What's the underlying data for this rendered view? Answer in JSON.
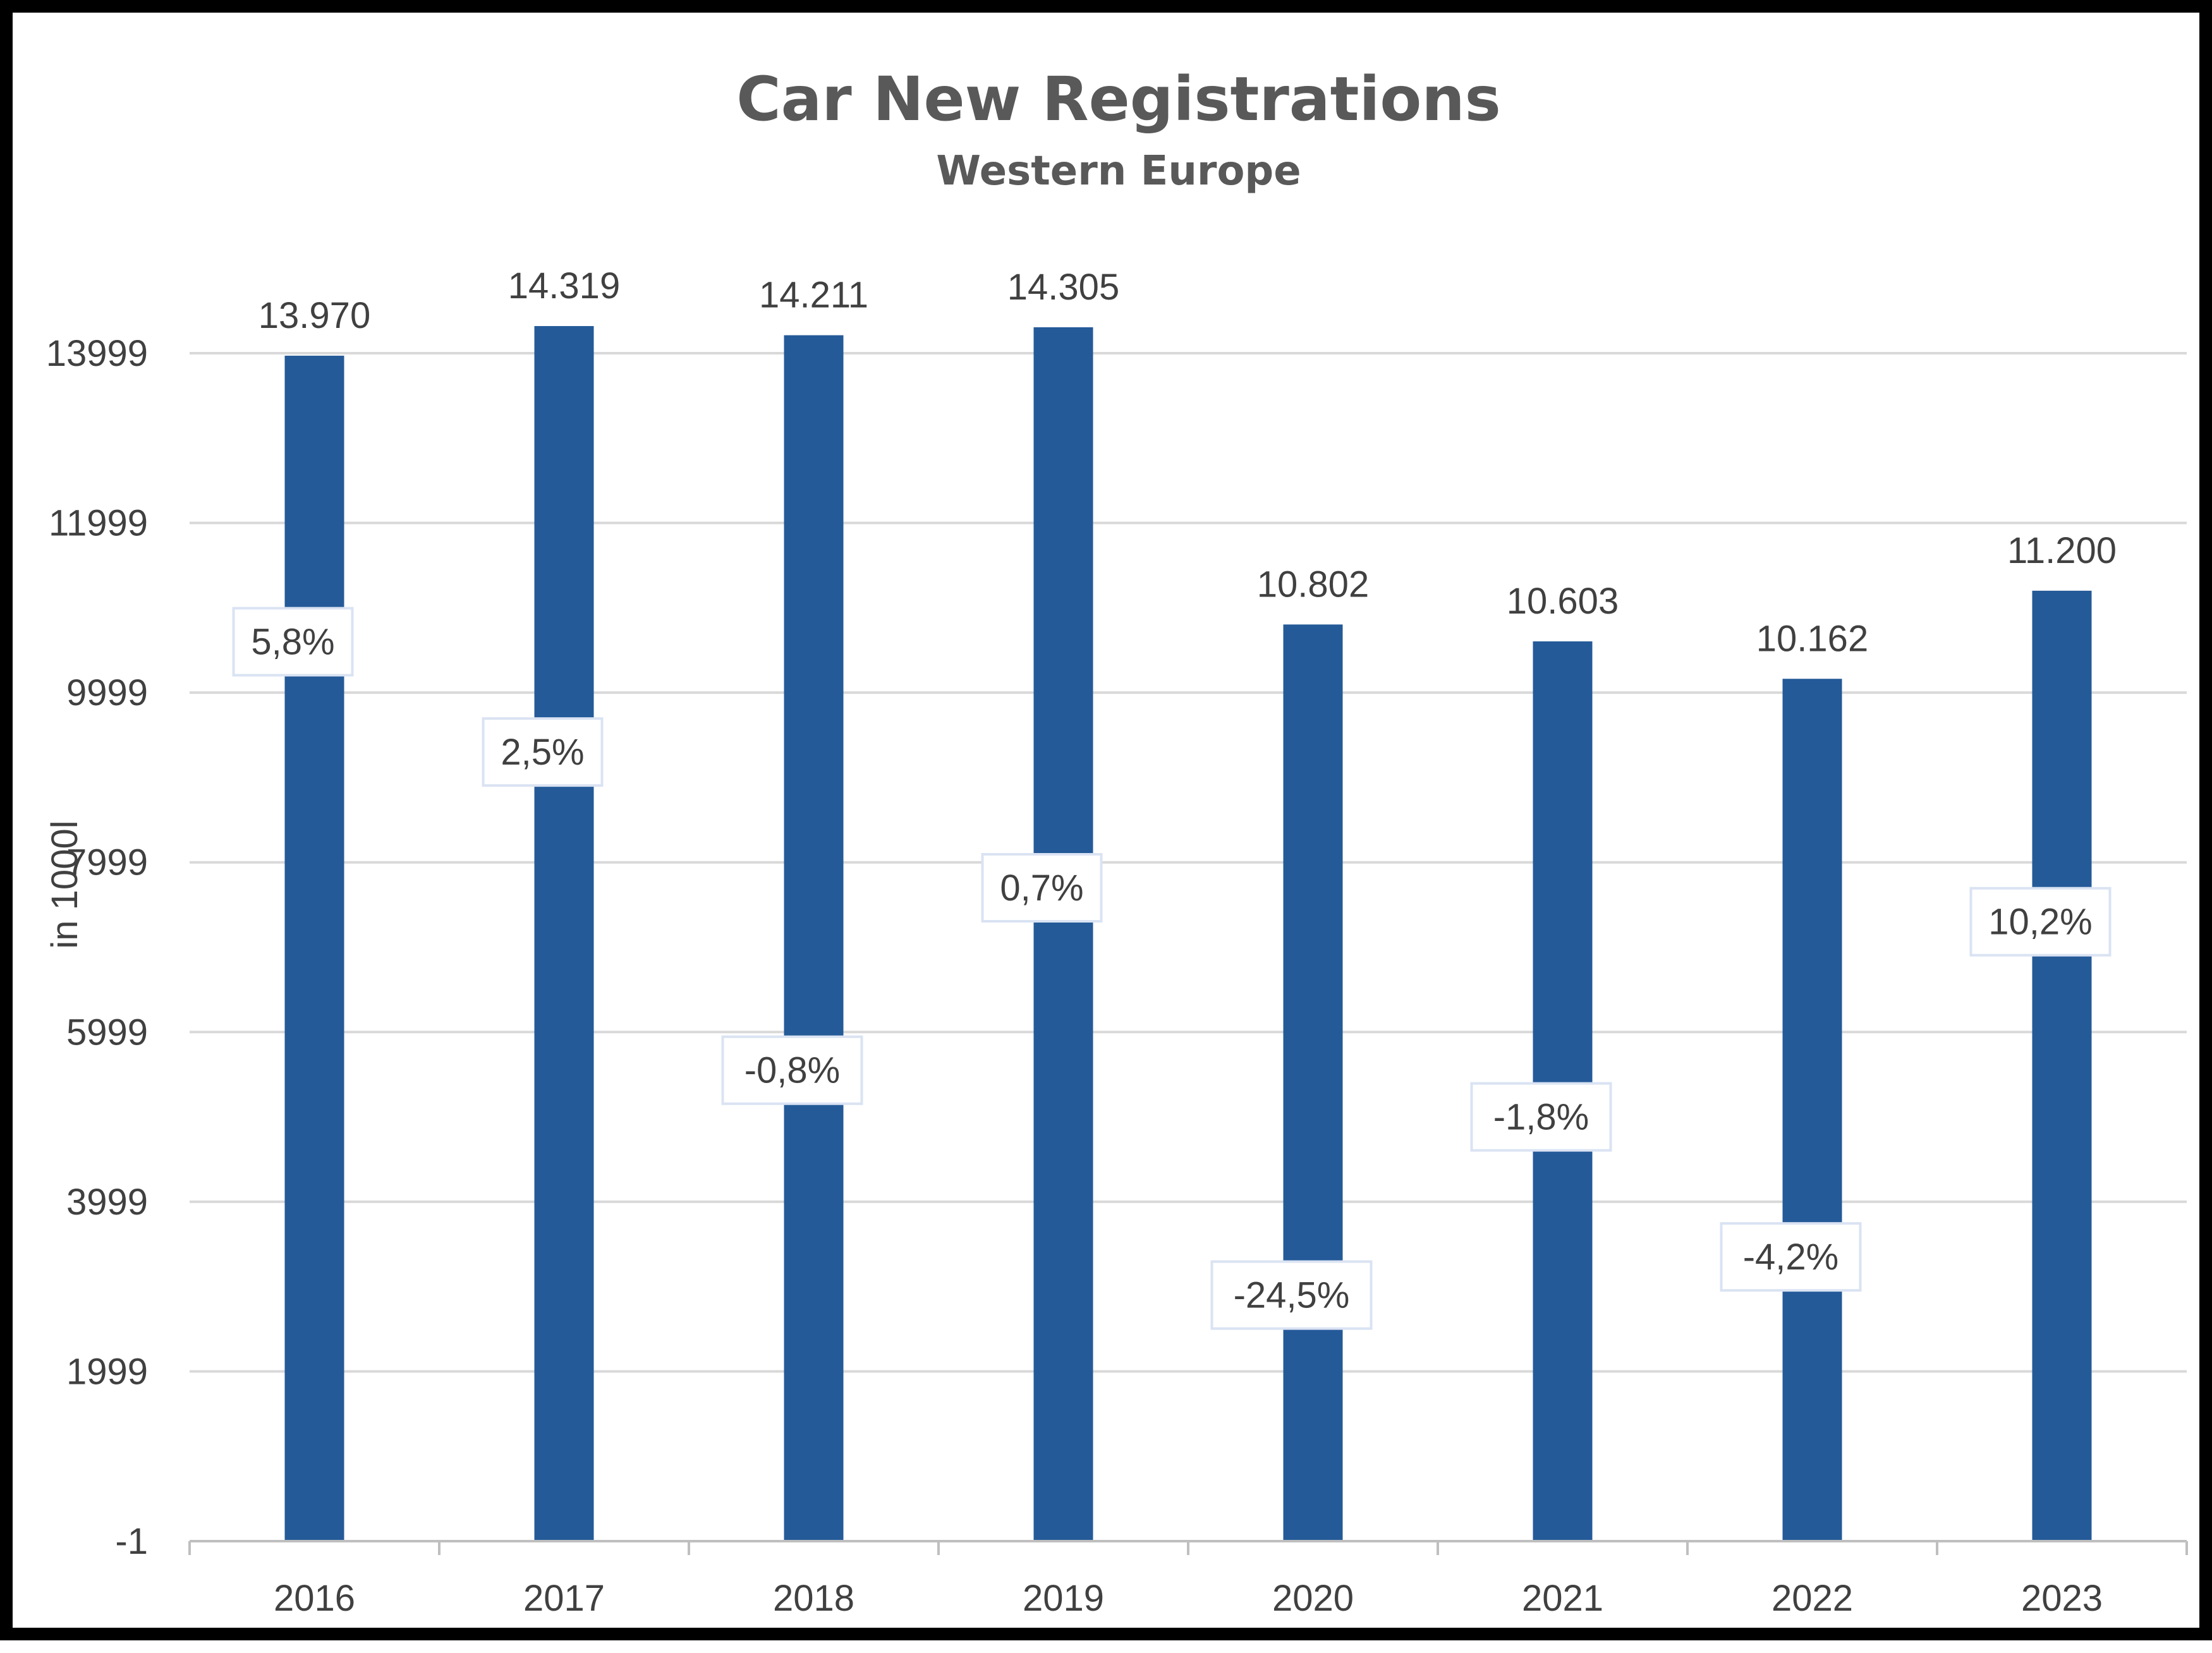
{
  "chart_data": {
    "type": "bar",
    "title": "Car New Registrations",
    "subtitle": "Western Europe",
    "ylabel": "in 1000l",
    "xlabel": "",
    "categories": [
      "2016",
      "2017",
      "2018",
      "2019",
      "2020",
      "2021",
      "2022",
      "2023"
    ],
    "values": [
      13970,
      14319,
      14211,
      14305,
      10802,
      10603,
      10162,
      11200
    ],
    "value_labels": [
      "13.970",
      "14.319",
      "14.211",
      "14.305",
      "10.802",
      "10.603",
      "10.162",
      "11.200"
    ],
    "growth_labels": [
      "5,8%",
      "2,5%",
      "-0,8%",
      "0,7%",
      "-24,5%",
      "-1,8%",
      "-4,2%",
      "10,2%"
    ],
    "growth_label_levels": [
      10599,
      9299,
      5549,
      7699,
      2899,
      4999,
      3349,
      7299
    ],
    "y_ticks": [
      -1,
      1999,
      3999,
      5999,
      7999,
      9999,
      11999,
      13999
    ],
    "y_tick_labels": [
      "-1",
      "1999",
      "3999",
      "5999",
      "7999",
      "9999",
      "11999",
      "13999"
    ],
    "ylim": [
      -1,
      13999
    ],
    "grid": true,
    "legend": "none",
    "bar_color": "#245A98"
  }
}
